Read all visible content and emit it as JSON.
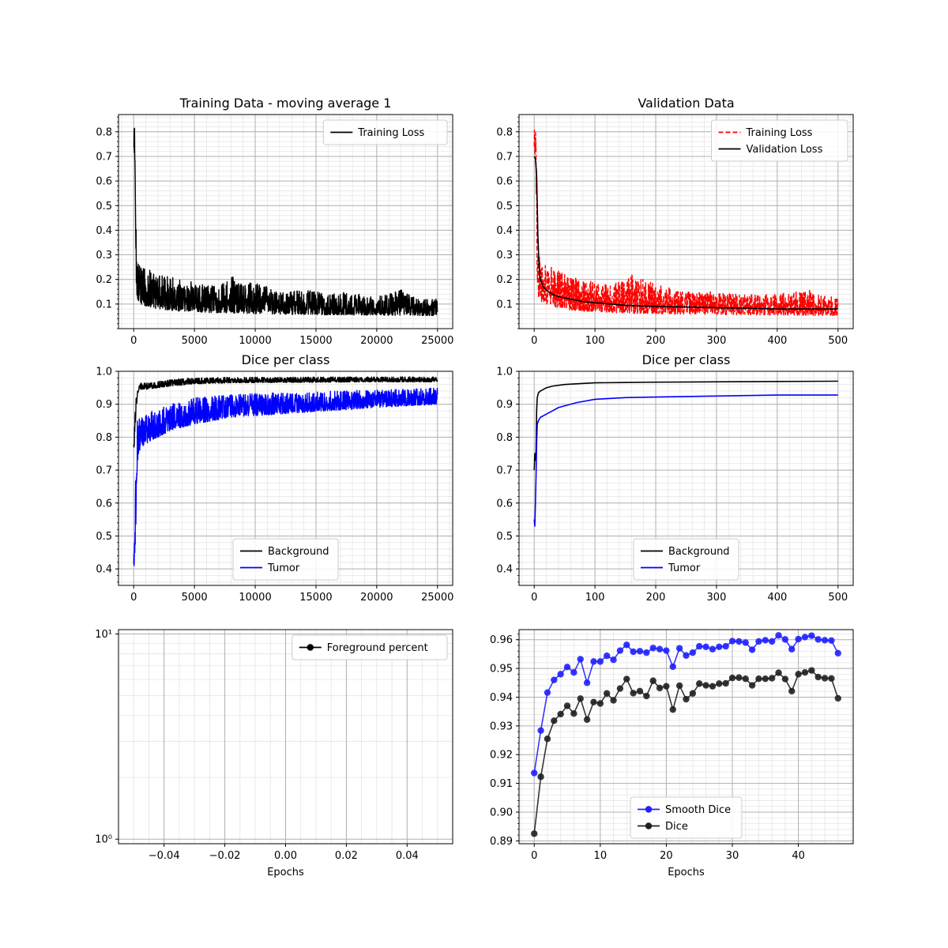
{
  "chart_data": [
    {
      "type": "line",
      "title": "Training Data - moving average 1",
      "xlabel": "",
      "ylabel": "",
      "xlim": [
        -1250,
        26250
      ],
      "ylim": [
        0,
        0.87
      ],
      "xticks": [
        0,
        5000,
        10000,
        15000,
        20000,
        25000
      ],
      "xtick_labels": [
        "0",
        "5000",
        "10000",
        "15000",
        "20000",
        "25000"
      ],
      "yticks": [
        0.1,
        0.2,
        0.3,
        0.4,
        0.5,
        0.6,
        0.7,
        0.8
      ],
      "ytick_labels": [
        "0.1",
        "0.2",
        "0.3",
        "0.4",
        "0.5",
        "0.6",
        "0.7",
        "0.8"
      ],
      "grid": true,
      "legend_position": "upper right",
      "series": [
        {
          "name": "Training Loss",
          "color": "#000000",
          "style": "solid",
          "noisy": true,
          "x": [
            0,
            40,
            80,
            120,
            160,
            200,
            260,
            300,
            400,
            600,
            1000,
            1500,
            2000,
            3000,
            4000,
            5000,
            6000,
            7000,
            8000,
            9000,
            10000,
            11000,
            12000,
            13000,
            14000,
            15000,
            16000,
            17000,
            18000,
            19000,
            20000,
            21000,
            22000,
            23000,
            24000,
            25000
          ],
          "low": [
            0.68,
            0.7,
            0.65,
            0.52,
            0.35,
            0.2,
            0.13,
            0.12,
            0.11,
            0.1,
            0.09,
            0.085,
            0.08,
            0.075,
            0.07,
            0.07,
            0.065,
            0.065,
            0.063,
            0.062,
            0.06,
            0.06,
            0.058,
            0.058,
            0.057,
            0.057,
            0.056,
            0.056,
            0.055,
            0.055,
            0.055,
            0.054,
            0.054,
            0.054,
            0.053,
            0.053
          ],
          "high": [
            0.8,
            0.85,
            0.82,
            0.75,
            0.6,
            0.4,
            0.33,
            0.31,
            0.27,
            0.26,
            0.25,
            0.24,
            0.22,
            0.21,
            0.2,
            0.19,
            0.18,
            0.18,
            0.22,
            0.18,
            0.19,
            0.17,
            0.15,
            0.15,
            0.16,
            0.15,
            0.14,
            0.15,
            0.14,
            0.14,
            0.13,
            0.14,
            0.16,
            0.13,
            0.12,
            0.12
          ]
        }
      ]
    },
    {
      "type": "line",
      "title": "Validation Data",
      "xlabel": "",
      "ylabel": "",
      "xlim": [
        -25,
        525
      ],
      "ylim": [
        0,
        0.87
      ],
      "xticks": [
        0,
        100,
        200,
        300,
        400,
        500
      ],
      "xtick_labels": [
        "0",
        "100",
        "200",
        "300",
        "400",
        "500"
      ],
      "yticks": [
        0.1,
        0.2,
        0.3,
        0.4,
        0.5,
        0.6,
        0.7,
        0.8
      ],
      "ytick_labels": [
        "0.1",
        "0.2",
        "0.3",
        "0.4",
        "0.5",
        "0.6",
        "0.7",
        "0.8"
      ],
      "grid": true,
      "legend_position": "upper right",
      "series": [
        {
          "name": "Training Loss",
          "color": "#ff0000",
          "style": "dashed",
          "noisy": true,
          "x": [
            0,
            1,
            2,
            3,
            4,
            5,
            6,
            8,
            12,
            20,
            30,
            40,
            50,
            60,
            80,
            100,
            130,
            160,
            200,
            250,
            300,
            350,
            400,
            450,
            500
          ],
          "low": [
            0.68,
            0.7,
            0.65,
            0.52,
            0.35,
            0.2,
            0.13,
            0.12,
            0.11,
            0.1,
            0.09,
            0.085,
            0.08,
            0.075,
            0.07,
            0.07,
            0.065,
            0.063,
            0.06,
            0.058,
            0.057,
            0.056,
            0.055,
            0.054,
            0.053
          ],
          "high": [
            0.8,
            0.85,
            0.82,
            0.75,
            0.6,
            0.4,
            0.33,
            0.31,
            0.27,
            0.26,
            0.25,
            0.24,
            0.22,
            0.21,
            0.2,
            0.19,
            0.18,
            0.22,
            0.18,
            0.15,
            0.15,
            0.14,
            0.14,
            0.16,
            0.12
          ]
        },
        {
          "name": "Validation Loss",
          "color": "#000000",
          "style": "solid",
          "noisy": false,
          "x": [
            0,
            2,
            4,
            6,
            8,
            10,
            15,
            20,
            30,
            40,
            50,
            60,
            80,
            100,
            150,
            200,
            250,
            300,
            350,
            400,
            450,
            500
          ],
          "y": [
            0.7,
            0.69,
            0.62,
            0.38,
            0.25,
            0.2,
            0.17,
            0.155,
            0.14,
            0.13,
            0.125,
            0.12,
            0.11,
            0.105,
            0.095,
            0.09,
            0.088,
            0.085,
            0.083,
            0.08,
            0.08,
            0.08
          ]
        }
      ]
    },
    {
      "type": "line",
      "title": "Dice per class",
      "xlabel": "",
      "ylabel": "",
      "xlim": [
        -1250,
        26250
      ],
      "ylim": [
        0.35,
        1.0
      ],
      "xticks": [
        0,
        5000,
        10000,
        15000,
        20000,
        25000
      ],
      "xtick_labels": [
        "0",
        "5000",
        "10000",
        "15000",
        "20000",
        "25000"
      ],
      "yticks": [
        0.4,
        0.5,
        0.6,
        0.7,
        0.8,
        0.9,
        1.0
      ],
      "ytick_labels": [
        "0.4",
        "0.5",
        "0.6",
        "0.7",
        "0.8",
        "0.9",
        "1.0"
      ],
      "grid": true,
      "legend_position": "lower center",
      "series": [
        {
          "name": "Background",
          "color": "#000000",
          "style": "solid",
          "noisy": true,
          "x": [
            0,
            50,
            100,
            150,
            200,
            300,
            400,
            600,
            1000,
            2000,
            3000,
            5000,
            8000,
            12000,
            16000,
            20000,
            25000
          ],
          "low": [
            0.75,
            0.78,
            0.8,
            0.83,
            0.88,
            0.92,
            0.94,
            0.945,
            0.945,
            0.95,
            0.955,
            0.962,
            0.965,
            0.966,
            0.967,
            0.968,
            0.968
          ],
          "high": [
            0.8,
            0.82,
            0.86,
            0.9,
            0.93,
            0.955,
            0.96,
            0.965,
            0.965,
            0.97,
            0.975,
            0.98,
            0.982,
            0.982,
            0.983,
            0.983,
            0.983
          ]
        },
        {
          "name": "Tumor",
          "color": "#0000ff",
          "style": "solid",
          "noisy": true,
          "x": [
            0,
            50,
            100,
            150,
            200,
            300,
            400,
            600,
            1000,
            2000,
            3000,
            5000,
            8000,
            12000,
            16000,
            20000,
            25000
          ],
          "low": [
            0.38,
            0.38,
            0.4,
            0.45,
            0.6,
            0.72,
            0.75,
            0.77,
            0.78,
            0.8,
            0.82,
            0.84,
            0.86,
            0.87,
            0.88,
            0.89,
            0.9
          ],
          "high": [
            0.44,
            0.46,
            0.52,
            0.65,
            0.8,
            0.85,
            0.86,
            0.87,
            0.87,
            0.89,
            0.9,
            0.92,
            0.93,
            0.935,
            0.94,
            0.945,
            0.95
          ]
        }
      ]
    },
    {
      "type": "line",
      "title": "Dice per class",
      "xlabel": "",
      "ylabel": "",
      "xlim": [
        -25,
        525
      ],
      "ylim": [
        0.35,
        1.0
      ],
      "xticks": [
        0,
        100,
        200,
        300,
        400,
        500
      ],
      "xtick_labels": [
        "0",
        "100",
        "200",
        "300",
        "400",
        "500"
      ],
      "yticks": [
        0.4,
        0.5,
        0.6,
        0.7,
        0.8,
        0.9,
        1.0
      ],
      "ytick_labels": [
        "0.4",
        "0.5",
        "0.6",
        "0.7",
        "0.8",
        "0.9",
        "1.0"
      ],
      "grid": true,
      "legend_position": "lower center",
      "series": [
        {
          "name": "Background",
          "color": "#000000",
          "style": "solid",
          "noisy": false,
          "x": [
            0,
            1,
            2,
            3,
            4,
            5,
            7,
            10,
            15,
            20,
            30,
            50,
            70,
            100,
            150,
            200,
            300,
            400,
            500
          ],
          "y": [
            0.7,
            0.75,
            0.73,
            0.76,
            0.88,
            0.92,
            0.935,
            0.94,
            0.945,
            0.95,
            0.955,
            0.96,
            0.962,
            0.965,
            0.966,
            0.967,
            0.968,
            0.969,
            0.97
          ]
        },
        {
          "name": "Tumor",
          "color": "#0000ff",
          "style": "solid",
          "noisy": false,
          "x": [
            0,
            1,
            2,
            3,
            4,
            5,
            7,
            10,
            15,
            20,
            30,
            40,
            50,
            70,
            100,
            150,
            200,
            300,
            400,
            500
          ],
          "y": [
            0.55,
            0.53,
            0.6,
            0.68,
            0.78,
            0.84,
            0.85,
            0.86,
            0.865,
            0.87,
            0.88,
            0.89,
            0.895,
            0.905,
            0.915,
            0.92,
            0.922,
            0.925,
            0.928,
            0.928
          ]
        }
      ]
    },
    {
      "type": "line",
      "title": "",
      "xlabel": "Epochs",
      "ylabel": "",
      "xlim": [
        -0.055,
        0.055
      ],
      "ylim": [
        0.95,
        10.5
      ],
      "yscale": "log",
      "xticks": [
        -0.04,
        -0.02,
        0.0,
        0.02,
        0.04
      ],
      "xtick_labels": [
        "−0.04",
        "−0.02",
        "0.00",
        "0.02",
        "0.04"
      ],
      "yticks": [
        1,
        10
      ],
      "ytick_labels": [
        "10⁰",
        "10¹"
      ],
      "grid": true,
      "legend_position": "upper right",
      "series": [
        {
          "name": "Foreground percent",
          "color": "#000000",
          "style": "solid",
          "marker": "circle",
          "x": [],
          "y": []
        }
      ]
    },
    {
      "type": "line",
      "title": "",
      "xlabel": "Epochs",
      "ylabel": "",
      "xlim": [
        -2.3,
        48.3
      ],
      "ylim": [
        0.889,
        0.9635
      ],
      "xticks": [
        0,
        10,
        20,
        30,
        40
      ],
      "xtick_labels": [
        "0",
        "10",
        "20",
        "30",
        "40"
      ],
      "yticks": [
        0.89,
        0.9,
        0.91,
        0.92,
        0.93,
        0.94,
        0.95,
        0.96
      ],
      "ytick_labels": [
        "0.89",
        "0.90",
        "0.91",
        "0.92",
        "0.93",
        "0.94",
        "0.95",
        "0.96"
      ],
      "grid": true,
      "legend_position": "lower center",
      "series": [
        {
          "name": "Smooth Dice",
          "color": "#2020ff",
          "style": "solid",
          "marker": "circle",
          "x": [
            0,
            1,
            2,
            3,
            4,
            5,
            6,
            7,
            8,
            9,
            10,
            11,
            12,
            13,
            14,
            15,
            16,
            17,
            18,
            19,
            20,
            21,
            22,
            23,
            24,
            25,
            26,
            27,
            28,
            29,
            30,
            31,
            32,
            33,
            34,
            35,
            36,
            37,
            38,
            39,
            40,
            41,
            42,
            43,
            44,
            45,
            46
          ],
          "y": [
            0.9136,
            0.9284,
            0.9416,
            0.946,
            0.948,
            0.9505,
            0.9486,
            0.9532,
            0.945,
            0.9524,
            0.9524,
            0.9544,
            0.953,
            0.9562,
            0.9582,
            0.9558,
            0.956,
            0.9555,
            0.9571,
            0.9567,
            0.9562,
            0.9506,
            0.957,
            0.9545,
            0.9555,
            0.9577,
            0.9575,
            0.9567,
            0.9575,
            0.9577,
            0.9595,
            0.9594,
            0.959,
            0.9565,
            0.9594,
            0.9598,
            0.9594,
            0.9615,
            0.9601,
            0.9567,
            0.9602,
            0.9609,
            0.9614,
            0.9601,
            0.9598,
            0.9597,
            0.9553
          ]
        },
        {
          "name": "Dice",
          "color": "#202020",
          "style": "solid",
          "marker": "circle",
          "x": [
            0,
            1,
            2,
            3,
            4,
            5,
            6,
            7,
            8,
            9,
            10,
            11,
            12,
            13,
            14,
            15,
            16,
            17,
            18,
            19,
            20,
            21,
            22,
            23,
            24,
            25,
            26,
            27,
            28,
            29,
            30,
            31,
            32,
            33,
            34,
            35,
            36,
            37,
            38,
            39,
            40,
            41,
            42,
            43,
            44,
            45,
            46
          ],
          "y": [
            0.8925,
            0.9123,
            0.9255,
            0.9318,
            0.9341,
            0.937,
            0.9343,
            0.9395,
            0.9322,
            0.9383,
            0.9378,
            0.9413,
            0.9389,
            0.943,
            0.9463,
            0.9414,
            0.9421,
            0.9404,
            0.9457,
            0.9432,
            0.9438,
            0.9357,
            0.944,
            0.9393,
            0.9413,
            0.9447,
            0.9441,
            0.9438,
            0.9447,
            0.9448,
            0.9467,
            0.9468,
            0.9464,
            0.9441,
            0.9464,
            0.9464,
            0.9466,
            0.9485,
            0.9463,
            0.9421,
            0.948,
            0.9486,
            0.9493,
            0.947,
            0.9466,
            0.9465,
            0.9396
          ]
        }
      ]
    }
  ]
}
